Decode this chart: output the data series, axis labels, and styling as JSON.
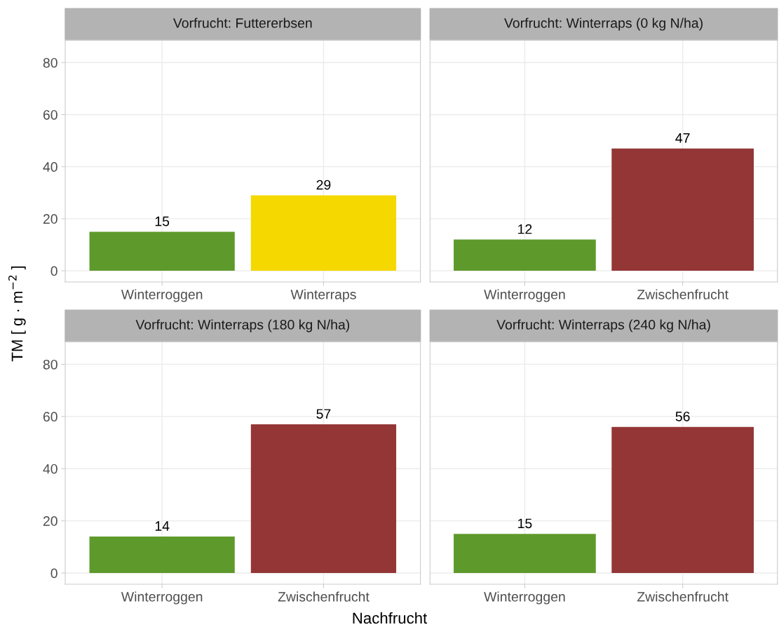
{
  "chart_data": [
    {
      "type": "bar",
      "title": "Vorfrucht: Futtererbsen",
      "ylabel": "TM [ g · m$^{−2}$ ]",
      "categories": [
        "Winterroggen",
        "Winterraps"
      ],
      "values": [
        15,
        29
      ],
      "colors": [
        "#5e9a2b",
        "#f5d800"
      ],
      "ylim": [
        -4.3,
        88.7
      ],
      "yticks": [
        0,
        20,
        40,
        60,
        80
      ],
      "grid": true,
      "data_labels": true
    },
    {
      "type": "bar",
      "title": "Vorfrucht: Winterraps (0 kg N/ha)",
      "categories": [
        "Winterroggen",
        "Zwischenfrucht"
      ],
      "values": [
        12,
        47
      ],
      "colors": [
        "#5e9a2b",
        "#943636"
      ],
      "ylim": [
        -4.3,
        88.7
      ],
      "yticks": [
        0,
        20,
        40,
        60,
        80
      ],
      "grid": true,
      "data_labels": true,
      "tick_labels": "x"
    },
    {
      "type": "bar",
      "title": "Vorfrucht: Winterraps (180 kg N/ha)",
      "xlabel": "Nachfrucht",
      "categories": [
        "Winterroggen",
        "Zwischenfrucht"
      ],
      "values": [
        14,
        57
      ],
      "colors": [
        "#5e9a2b",
        "#943636"
      ],
      "ylim": [
        -4.3,
        88.7
      ],
      "yticks": [
        0,
        20,
        40,
        60,
        80
      ],
      "grid": true,
      "data_labels": true
    },
    {
      "type": "bar",
      "title": "Vorfrucht: Winterraps (240 kg N/ha)",
      "categories": [
        "Winterroggen",
        "Zwischenfrucht"
      ],
      "values": [
        15,
        56
      ],
      "colors": [
        "#5e9a2b",
        "#943636"
      ],
      "ylim": [
        -4.3,
        88.7
      ],
      "yticks": [
        0,
        20,
        40,
        60,
        80
      ],
      "grid": true,
      "data_labels": true,
      "tick_labels": "x"
    }
  ]
}
